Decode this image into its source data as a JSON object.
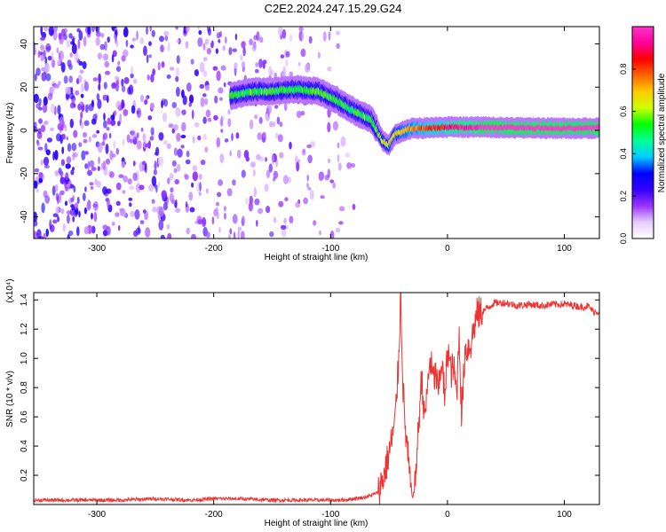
{
  "title": "C2E2.2024.247.15.29.G24",
  "chart_data": [
    {
      "type": "heatmap",
      "xlabel": "Height of straight line (km)",
      "ylabel": "Frequency (Hz)",
      "xlim": [
        -354,
        130
      ],
      "ylim": [
        -50,
        48
      ],
      "x_ticks": [
        -300,
        -200,
        -100,
        0,
        100
      ],
      "y_ticks": [
        -40,
        -20,
        0,
        20,
        40
      ],
      "colorbar": {
        "label": "Normalized spectral amplitude",
        "range": [
          0,
          1
        ],
        "ticks": [
          "0.0",
          "0.2",
          "0.4",
          "0.6",
          "0.8"
        ],
        "colors": [
          "#ffffff",
          "#e6ccff",
          "#9933ff",
          "#3300ff",
          "#0000ff",
          "#00ccff",
          "#00ff99",
          "#00ff00",
          "#ccff00",
          "#ffcc00",
          "#ff6600",
          "#ff0000",
          "#ff0099",
          "#ff33cc"
        ]
      },
      "ridge": {
        "x": [
          -185,
          -175,
          -165,
          -150,
          -130,
          -110,
          -95,
          -80,
          -65,
          -60,
          -55,
          -50,
          -45,
          -40,
          -30,
          -20,
          0,
          30,
          60,
          90,
          130
        ],
        "y": [
          16,
          17,
          18,
          18,
          19,
          18,
          14,
          9,
          5,
          0,
          -5,
          -7,
          -2,
          -1,
          1,
          1,
          1.5,
          1.5,
          1.2,
          1,
          1
        ]
      },
      "noise_band_x": [
        -354,
        -80
      ]
    },
    {
      "type": "line",
      "xlabel": "Height of straight line (km)",
      "ylabel": "SNR (10 * v/v)",
      "scale_label": "(x10⁴)",
      "xlim": [
        -354,
        130
      ],
      "ylim": [
        0,
        1.45
      ],
      "x_ticks": [
        -300,
        -200,
        -100,
        0,
        100
      ],
      "y_ticks": [
        "0.2",
        "0.4",
        "0.6",
        "0.8",
        "1.0",
        "1.2",
        "1.4"
      ],
      "series": [
        {
          "color": "#ee3333",
          "x": [
            -354,
            -320,
            -300,
            -280,
            -250,
            -220,
            -200,
            -180,
            -150,
            -120,
            -100,
            -90,
            -80,
            -70,
            -60,
            -55,
            -50,
            -45,
            -42,
            -40,
            -38,
            -36,
            -34,
            -32,
            -30,
            -28,
            -25,
            -22,
            -20,
            -18,
            -15,
            -12,
            -10,
            -8,
            -5,
            -2,
            0,
            3,
            5,
            8,
            10,
            12,
            15,
            20,
            25,
            30,
            35,
            40,
            50,
            60,
            70,
            80,
            90,
            100,
            110,
            115,
            120,
            125,
            130
          ],
          "y": [
            0.03,
            0.03,
            0.03,
            0.03,
            0.04,
            0.03,
            0.04,
            0.04,
            0.03,
            0.03,
            0.03,
            0.03,
            0.04,
            0.05,
            0.08,
            0.18,
            0.35,
            0.55,
            0.95,
            1.45,
            0.8,
            0.5,
            0.35,
            0.15,
            0.05,
            0.1,
            0.5,
            0.9,
            0.6,
            0.7,
            1.0,
            0.85,
            0.9,
            0.75,
            1.0,
            0.7,
            1.1,
            0.9,
            0.95,
            0.75,
            1.2,
            0.6,
            1.05,
            1.1,
            1.3,
            1.32,
            1.35,
            1.38,
            1.38,
            1.36,
            1.37,
            1.36,
            1.37,
            1.37,
            1.36,
            1.35,
            1.36,
            1.32,
            1.32
          ]
        }
      ]
    }
  ]
}
